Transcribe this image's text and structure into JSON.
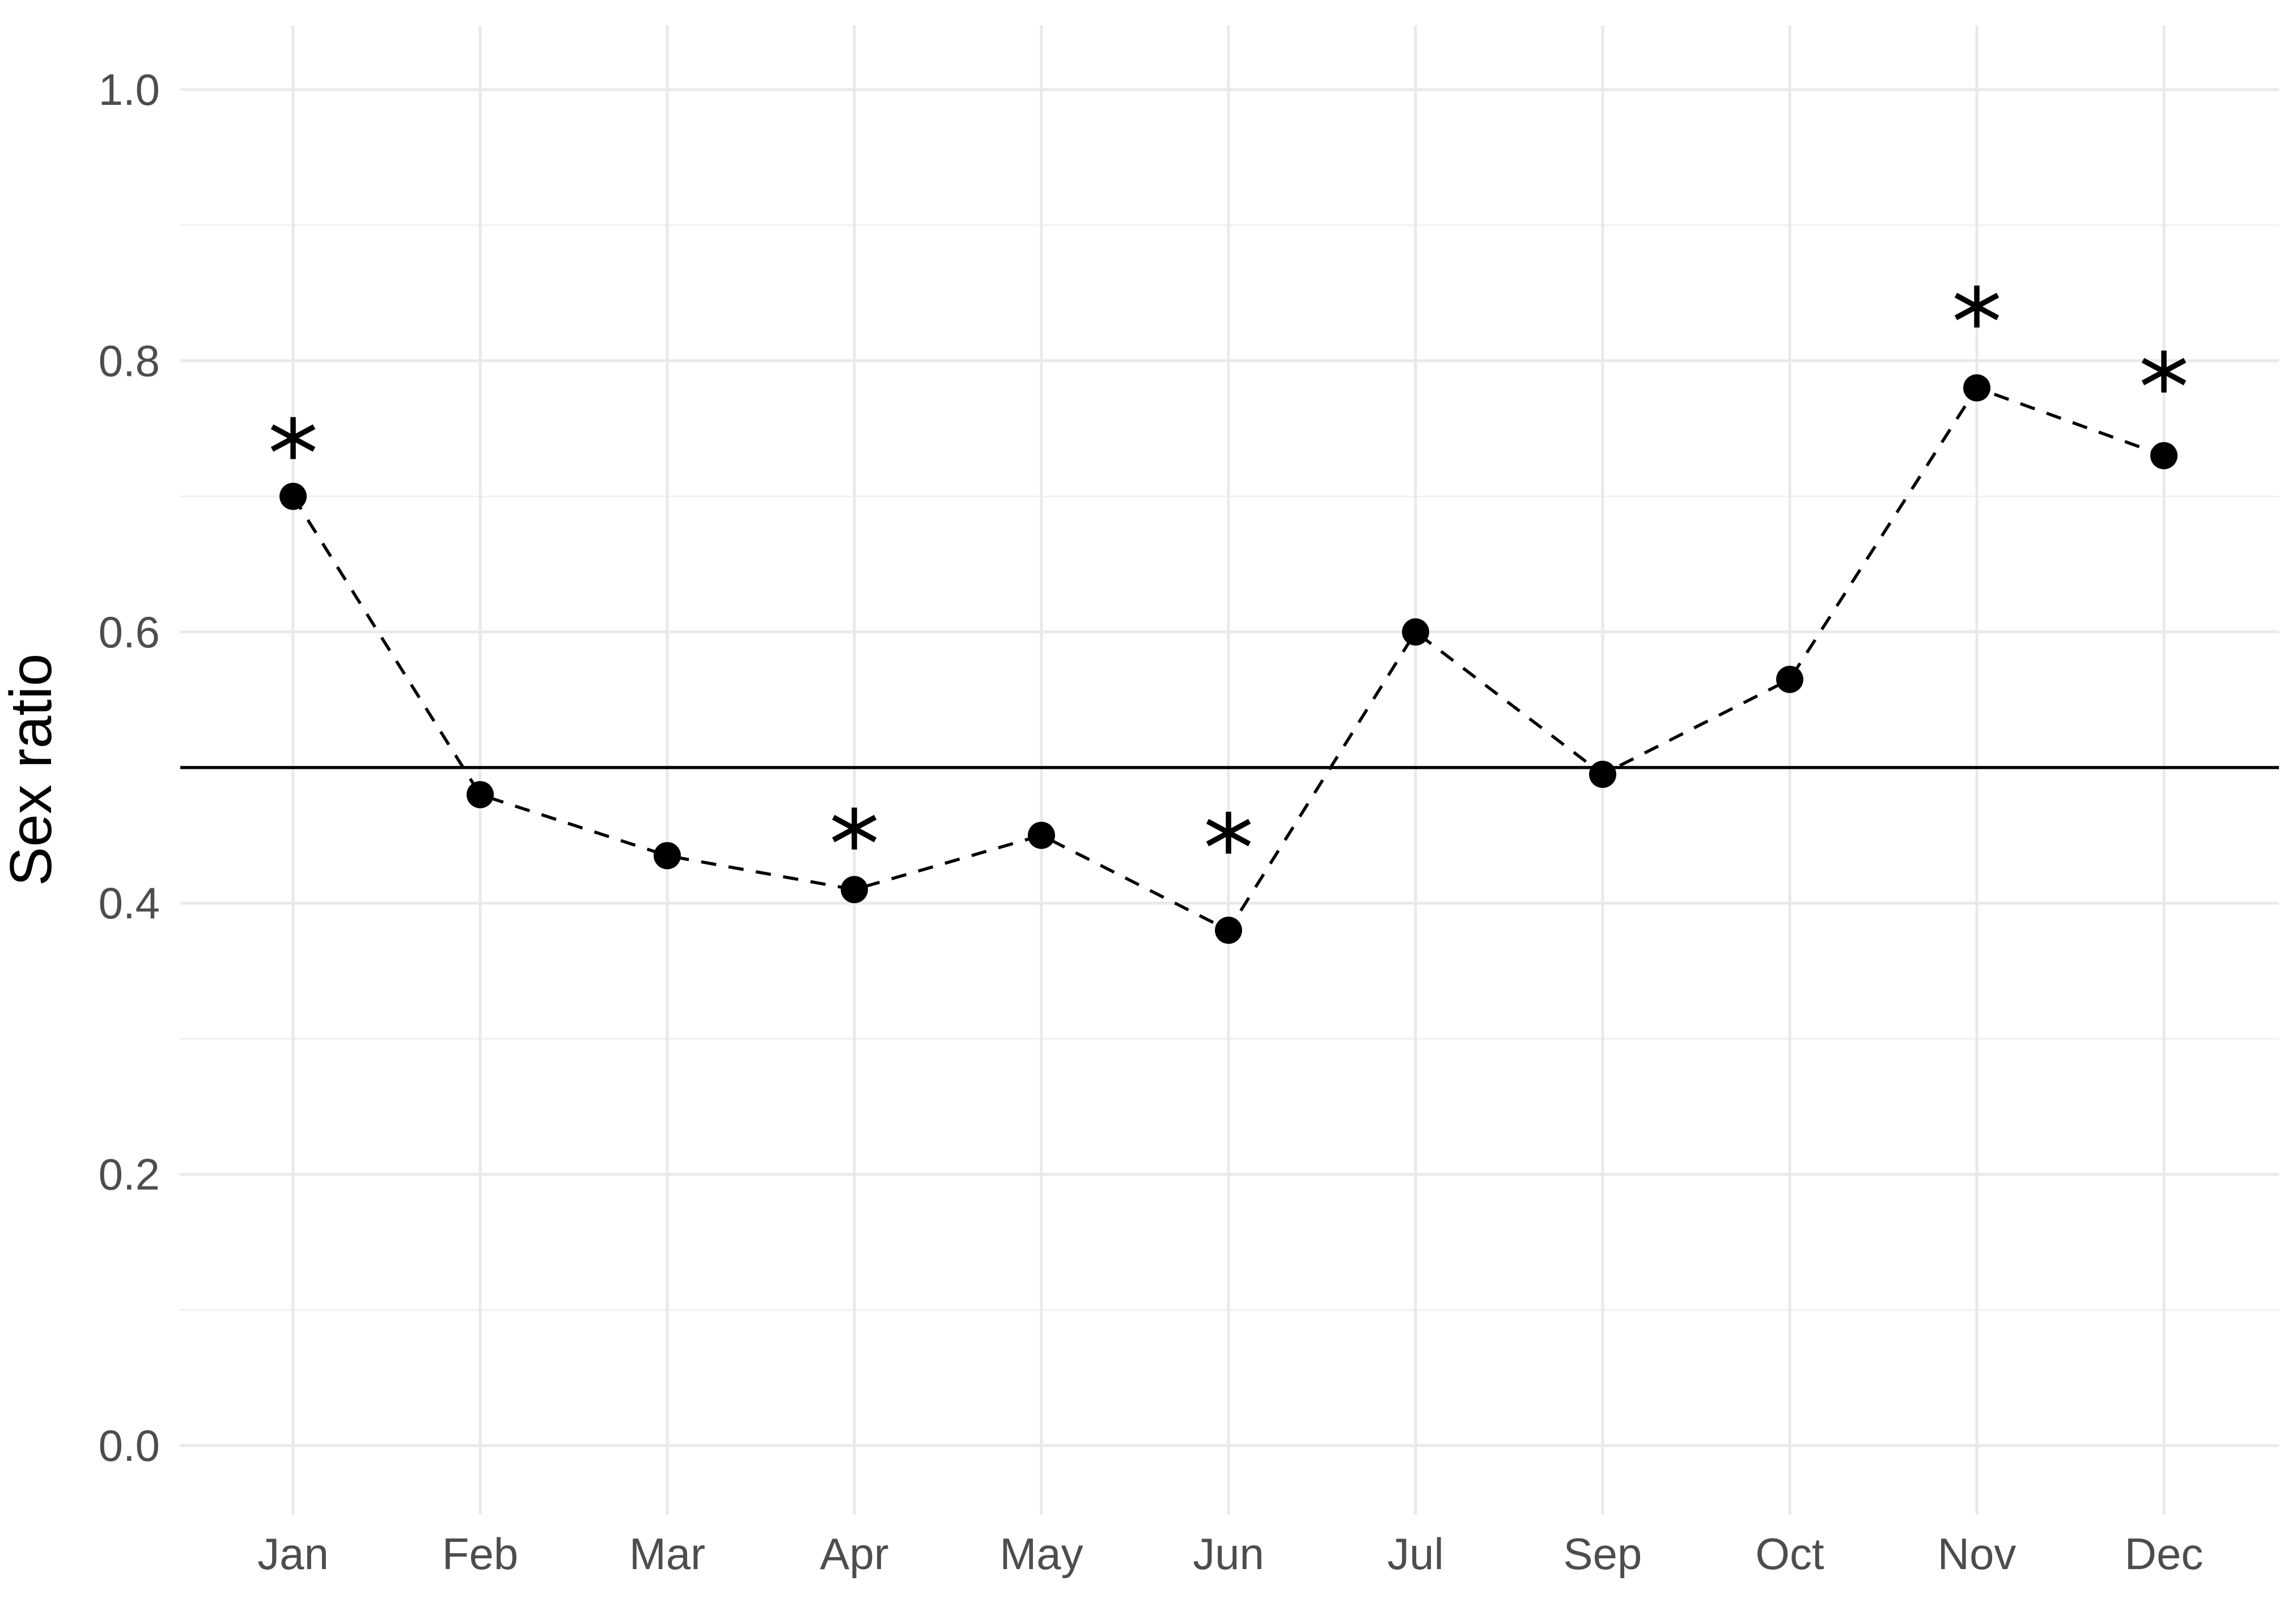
{
  "figure": {
    "background_color": "#ffffff",
    "axis_text_color": "#4d4d4d",
    "axis_title_color": "#000000",
    "grid_major_color": "#e9e9e9",
    "grid_minor_color": "#f0f0f0",
    "series_color": "#000000",
    "reference_line_color": "#000000"
  },
  "chart_data": {
    "type": "line",
    "title": "",
    "xlabel": "",
    "ylabel": "Sex ratio",
    "categories": [
      "Jan",
      "Feb",
      "Mar",
      "Apr",
      "May",
      "Jun",
      "Jul",
      "Sep",
      "Oct",
      "Nov",
      "Dec"
    ],
    "series": [
      {
        "name": "sex-ratio",
        "values": [
          0.7,
          0.48,
          0.435,
          0.41,
          0.45,
          0.38,
          0.6,
          0.495,
          0.565,
          0.78,
          0.73
        ],
        "line_style": "dashed",
        "marker": "filled-circle",
        "color": "#000000"
      }
    ],
    "significance_markers": [
      {
        "category": "Jan",
        "index": 0,
        "symbol": "*",
        "y": 0.743
      },
      {
        "category": "Apr",
        "index": 3,
        "symbol": "*",
        "y": 0.455
      },
      {
        "category": "Jun",
        "index": 5,
        "symbol": "*",
        "y": 0.452
      },
      {
        "category": "Nov",
        "index": 9,
        "symbol": "*",
        "y": 0.84
      },
      {
        "category": "Dec",
        "index": 10,
        "symbol": "*",
        "y": 0.792
      }
    ],
    "reference_line": {
      "y": 0.5,
      "style": "solid",
      "color": "#000000"
    },
    "y_ticks": [
      "0.0",
      "0.2",
      "0.4",
      "0.6",
      "0.8",
      "1.0"
    ],
    "y_minor_ticks": [
      0.1,
      0.3,
      0.5,
      0.7,
      0.9
    ],
    "ylim": [
      -0.04,
      1.04
    ],
    "grid": "major-and-minor",
    "legend": "none"
  }
}
